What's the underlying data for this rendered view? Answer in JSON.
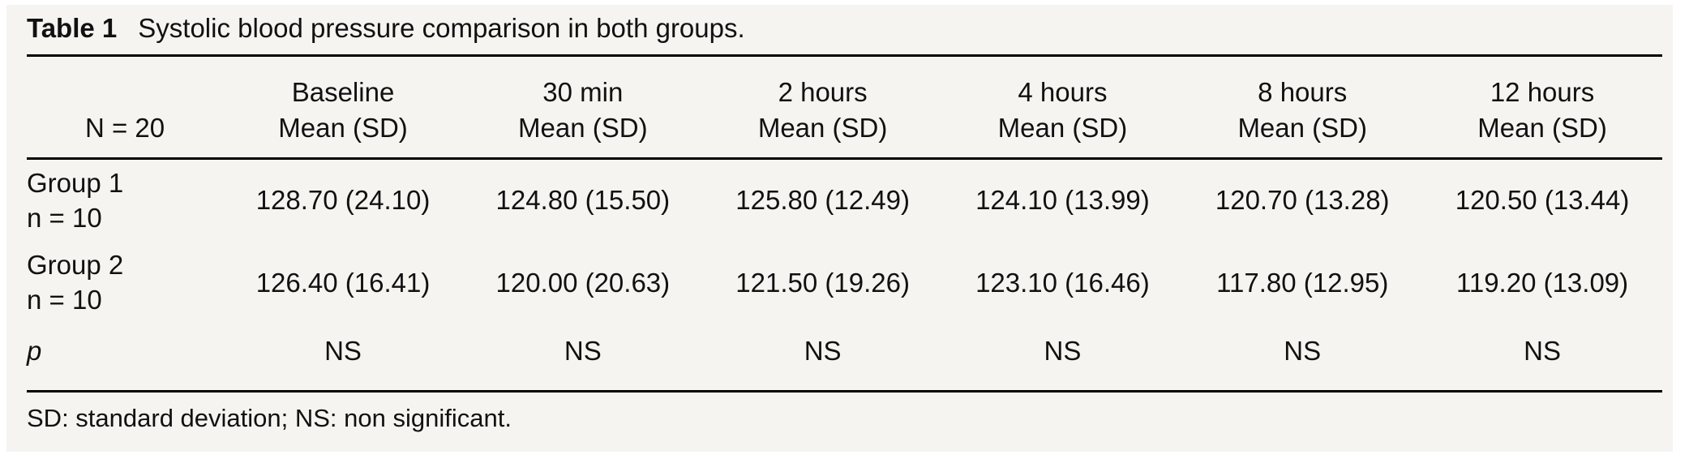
{
  "title": {
    "label": "Table 1",
    "text": "Systolic blood pressure comparison in both groups."
  },
  "table": {
    "n_label": "N = 20",
    "columns": [
      {
        "period": "Baseline",
        "stat": "Mean (SD)"
      },
      {
        "period": "30 min",
        "stat": "Mean (SD)"
      },
      {
        "period": "2 hours",
        "stat": "Mean (SD)"
      },
      {
        "period": "4 hours",
        "stat": "Mean (SD)"
      },
      {
        "period": "8 hours",
        "stat": "Mean (SD)"
      },
      {
        "period": "12 hours",
        "stat": "Mean (SD)"
      }
    ],
    "rows": [
      {
        "group": "Group 1",
        "n": "n = 10",
        "values": [
          "128.70 (24.10)",
          "124.80 (15.50)",
          "125.80 (12.49)",
          "124.10 (13.99)",
          "120.70 (13.28)",
          "120.50 (13.44)"
        ]
      },
      {
        "group": "Group 2",
        "n": "n = 10",
        "values": [
          "126.40 (16.41)",
          "120.00 (20.63)",
          "121.50 (19.26)",
          "123.10 (16.46)",
          "117.80 (12.95)",
          "119.20 (13.09)"
        ]
      }
    ],
    "p_row": {
      "label": "p",
      "values": [
        "NS",
        "NS",
        "NS",
        "NS",
        "NS",
        "NS"
      ]
    }
  },
  "footnote": "SD: standard deviation; NS: non significant.",
  "colors": {
    "panel_background": "#f5f4f1",
    "page_background": "#ffffff",
    "text": "#111111",
    "rule": "#000000"
  }
}
